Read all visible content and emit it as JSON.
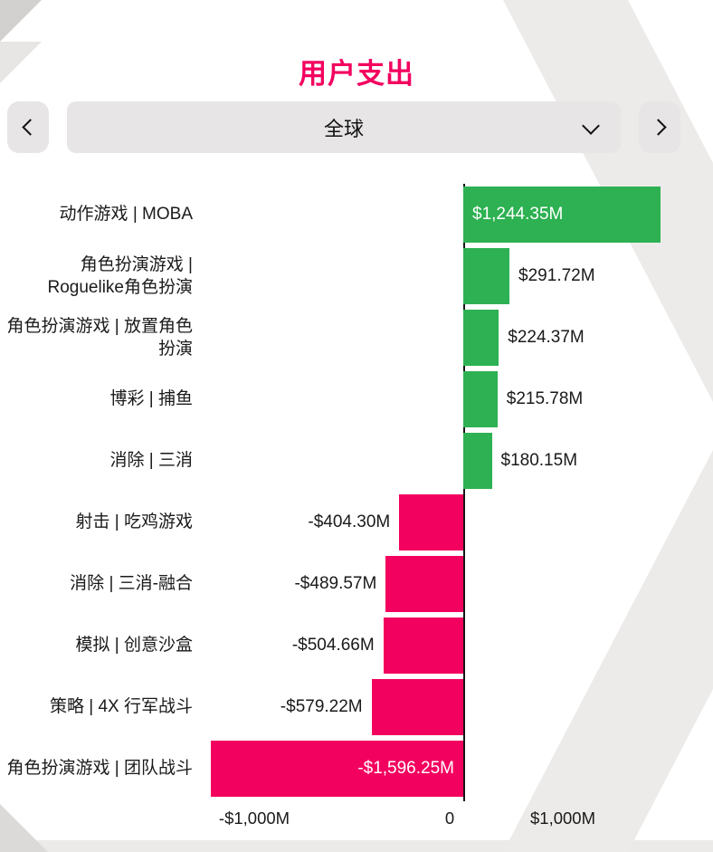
{
  "title": "用户支出",
  "selector": {
    "value": "全球"
  },
  "theme": {
    "accent_pink": "#f3015f",
    "positive_green": "#2db152",
    "control_gray": "#e7e5e5",
    "watermark_gray": "#edebea"
  },
  "chart_data": {
    "type": "bar",
    "orientation": "horizontal",
    "title": "用户支出",
    "categories": [
      "动作游戏 | MOBA",
      "角色扮演游戏 | Roguelike角色扮演",
      "角色扮演游戏 | 放置角色扮演",
      "博彩 | 捕鱼",
      "消除 | 三消",
      "射击 | 吃鸡游戏",
      "消除 | 三消-融合",
      "模拟 | 创意沙盒",
      "策略 | 4X 行军战斗",
      "角色扮演游戏 | 团队战斗"
    ],
    "values": [
      1244.35,
      291.72,
      224.37,
      215.78,
      180.15,
      -404.3,
      -489.57,
      -504.66,
      -579.22,
      -1596.25
    ],
    "value_labels": [
      "$1,244.35M",
      "$291.72M",
      "$224.37M",
      "$215.78M",
      "$180.15M",
      "-$404.30M",
      "-$489.57M",
      "-$504.66M",
      "-$579.22M",
      "-$1,596.25M"
    ],
    "x_ticks": [
      "-$1,000M",
      "0",
      "$1,000M"
    ],
    "xlim": [
      -1620,
      1580
    ],
    "grid": false,
    "legend": false,
    "zero_line": true,
    "colors": {
      "positive": "#2db152",
      "negative": "#f3015f"
    }
  }
}
